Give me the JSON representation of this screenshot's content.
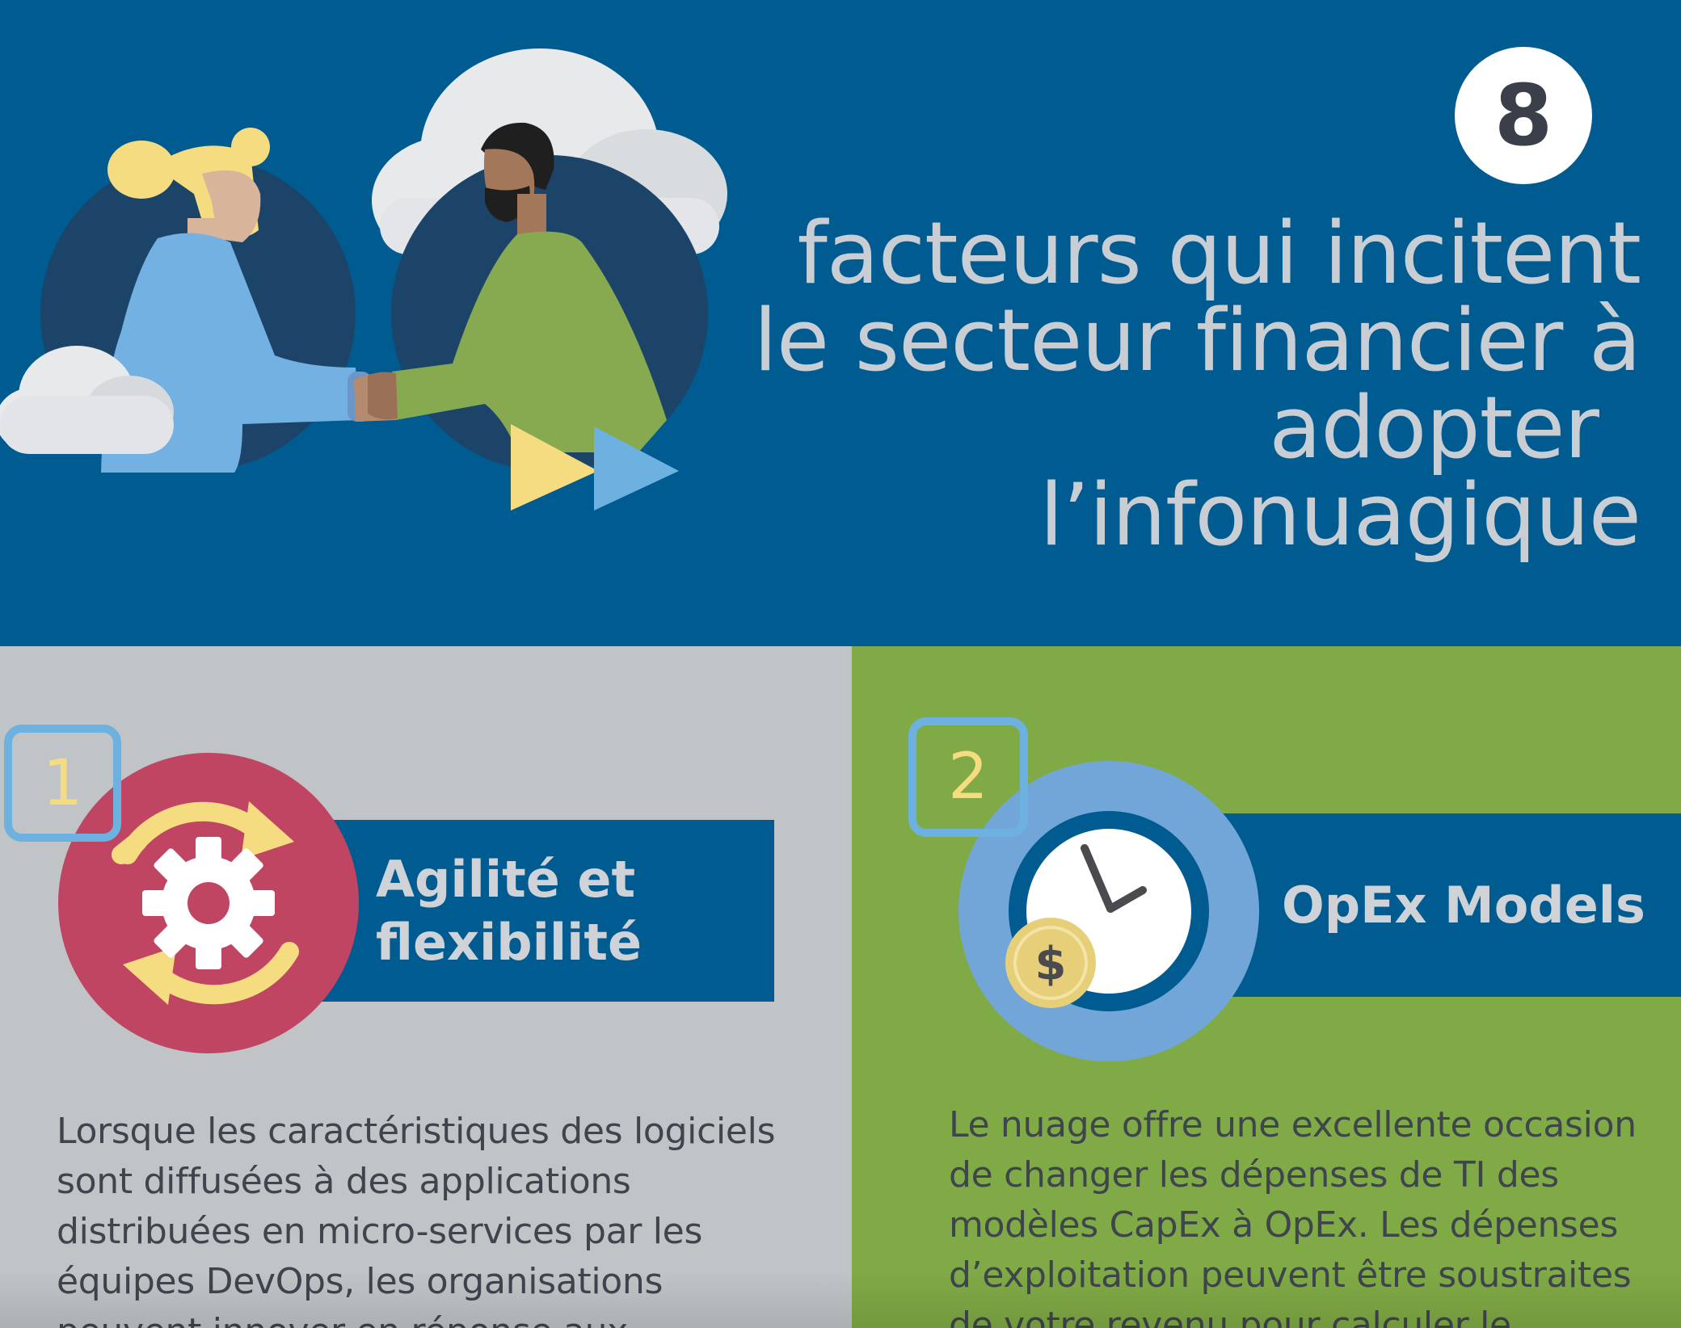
{
  "header": {
    "count": "8",
    "title_lines": [
      "facteurs qui incitent",
      "le secteur financier à",
      "adopter",
      "l’infonuagique"
    ]
  },
  "factors": [
    {
      "number": "1",
      "title_lines": [
        "Agilité et",
        "flexibilité"
      ],
      "icon": "gear-cycle-icon",
      "body_lines": [
        "Lorsque les caractéristiques des logiciels",
        "sont diffusées à des applications",
        "distribuées en micro-services par les",
        "équipes DevOps, les organisations",
        "peuvent innover en réponse aux"
      ]
    },
    {
      "number": "2",
      "title_lines": [
        "OpEx Models"
      ],
      "icon": "clock-coin-icon",
      "body_lines": [
        "Le nuage offre une excellente occasion",
        "de changer les dépenses de TI des",
        "modèles CapEx à OpEx. Les dépenses",
        "d’exploitation peuvent être soustraites",
        "de votre revenu pour calculer le"
      ]
    }
  ],
  "colors": {
    "hero_bg": "#005b91",
    "left_panel_bg": "#c0c4c7",
    "right_panel_bg": "#80aa45",
    "accent_blue": "#6db1e0",
    "accent_yellow": "#f6dc80",
    "accent_red": "#c04562"
  }
}
